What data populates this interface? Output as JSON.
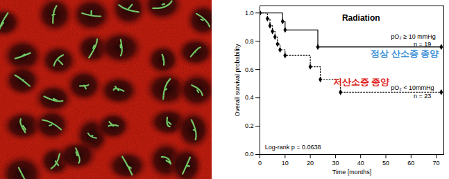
{
  "chart_data": {
    "type": "line",
    "title": "Radiation",
    "xlabel": "Time [months]",
    "ylabel": "Overall survival probability",
    "xlim": [
      0,
      73
    ],
    "ylim": [
      0,
      1.05
    ],
    "xticks": [
      0,
      10,
      20,
      30,
      40,
      50,
      60,
      70
    ],
    "yticks": [
      {
        "value": 0,
        "label": "0.0"
      },
      {
        "value": 0.2,
        "label": "0.2"
      },
      {
        "value": 0.4,
        "label": "0.4"
      },
      {
        "value": 0.6,
        "label": "0.6"
      },
      {
        "value": 0.8,
        "label": "0.8"
      },
      {
        "value": 1.0,
        "label": "1.0"
      }
    ],
    "grid": false,
    "series": [
      {
        "name": "pO₂ ≥ 10 mmHg",
        "color": "#000000",
        "line_style": "solid",
        "marker": "diamond",
        "x": [
          0,
          9,
          10,
          23,
          72
        ],
        "values": [
          1.0,
          0.94,
          0.88,
          0.76,
          0.76
        ]
      },
      {
        "name": "pO₂ < 10mmHg",
        "color": "#000000",
        "line_style": "dotted",
        "marker": "diamond",
        "x": [
          0,
          3,
          4,
          5,
          6,
          7,
          8,
          10,
          20,
          24,
          32,
          72
        ],
        "values": [
          1.0,
          0.96,
          0.91,
          0.87,
          0.83,
          0.78,
          0.74,
          0.7,
          0.62,
          0.53,
          0.44,
          0.44
        ]
      }
    ],
    "annotations": [
      {
        "text": "pO₂ ≥ 10 mmHg",
        "x": 52,
        "y": 0.83
      },
      {
        "text": "n = 19",
        "x": 61,
        "y": 0.78
      },
      {
        "text": "정상 산소증 종양",
        "x": 44,
        "y": 0.71,
        "color": "#3a8fd8"
      },
      {
        "text": "저산소증 종양",
        "x": 29,
        "y": 0.51,
        "color": "#e02020"
      },
      {
        "text": "pO₂ < 10mmHg",
        "x": 52,
        "y": 0.47
      },
      {
        "text": "n = 23",
        "x": 61,
        "y": 0.41
      },
      {
        "text": "Log-rank p = 0.0638",
        "x": 2,
        "y": 0.05
      }
    ]
  }
}
